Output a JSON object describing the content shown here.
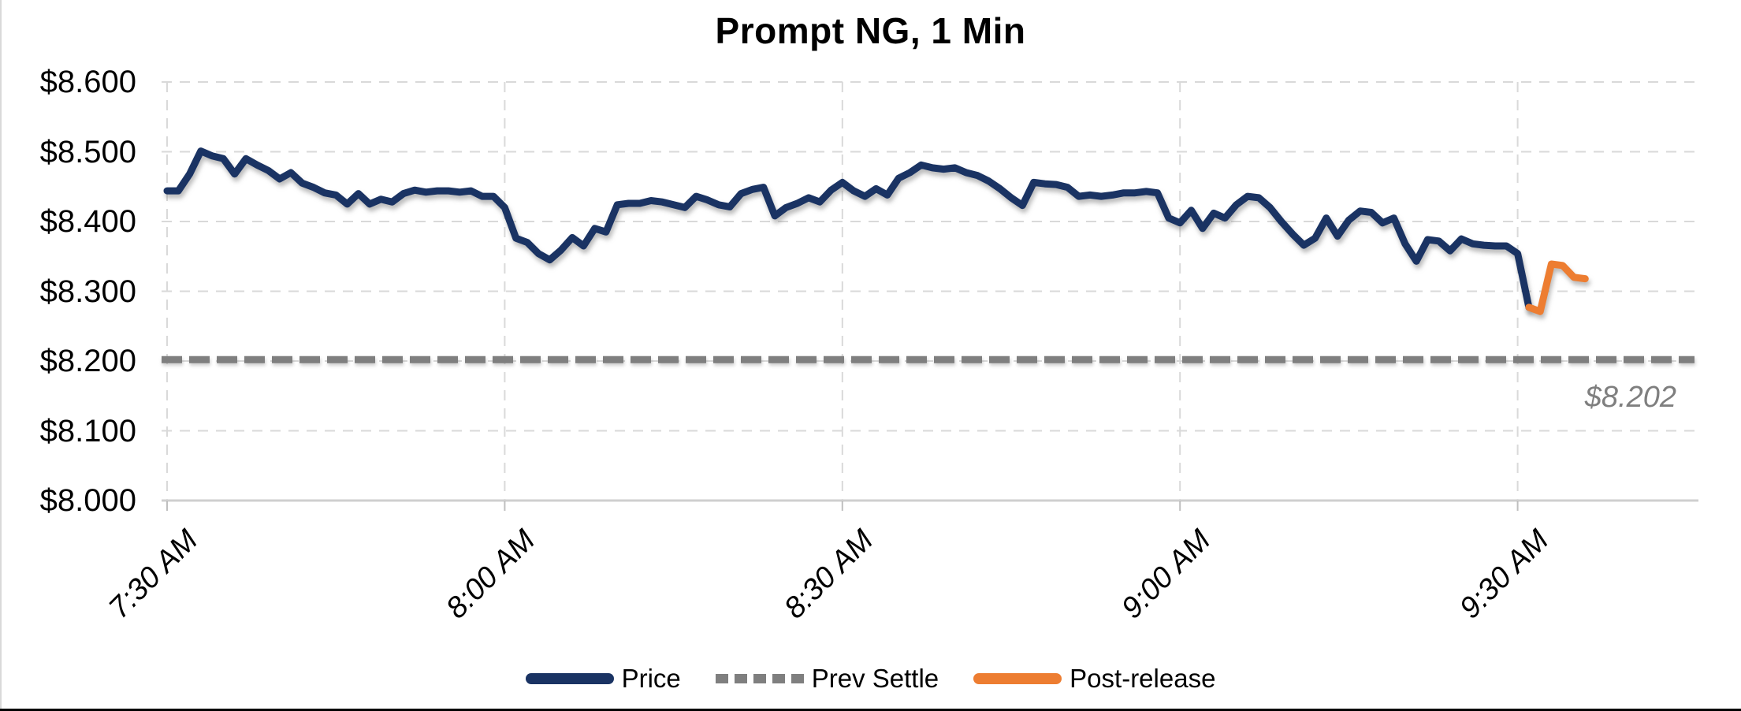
{
  "chart_data": {
    "type": "line",
    "title": "Prompt NG, 1 Min",
    "xlabel": "",
    "ylabel": "",
    "grid": true,
    "legend_position": "bottom",
    "x": {
      "unit": "minutes since 7:30 AM",
      "minutes_per_point": 1,
      "tick_minutes": [
        0,
        30,
        60,
        90,
        120
      ],
      "tick_labels": [
        "7:30 AM",
        "8:00 AM",
        "8:30 AM",
        "9:00 AM",
        "9:30 AM"
      ]
    },
    "y": {
      "min": 8.0,
      "max": 8.6,
      "step": 0.1,
      "tick_labels": [
        "$8.000",
        "$8.100",
        "$8.200",
        "$8.300",
        "$8.400",
        "$8.500",
        "$8.600"
      ]
    },
    "annotation": {
      "text": "$8.202",
      "color": "#7f7f7f",
      "attached_to": "Prev Settle"
    },
    "series": [
      {
        "name": "Price",
        "type": "line",
        "color": "#1a3363",
        "dash": false,
        "start_minute": 0,
        "values": [
          8.444,
          8.444,
          8.468,
          8.501,
          8.494,
          8.49,
          8.468,
          8.49,
          8.481,
          8.473,
          8.461,
          8.47,
          8.455,
          8.449,
          8.441,
          8.438,
          8.425,
          8.44,
          8.425,
          8.432,
          8.428,
          8.44,
          8.445,
          8.442,
          8.444,
          8.444,
          8.442,
          8.444,
          8.436,
          8.436,
          8.42,
          8.376,
          8.37,
          8.354,
          8.345,
          8.359,
          8.377,
          8.365,
          8.39,
          8.385,
          8.424,
          8.426,
          8.426,
          8.43,
          8.428,
          8.424,
          8.42,
          8.436,
          8.431,
          8.424,
          8.421,
          8.44,
          8.446,
          8.449,
          8.408,
          8.42,
          8.426,
          8.434,
          8.428,
          8.445,
          8.456,
          8.444,
          8.436,
          8.447,
          8.438,
          8.462,
          8.47,
          8.481,
          8.477,
          8.475,
          8.477,
          8.47,
          8.466,
          8.458,
          8.447,
          8.434,
          8.423,
          8.456,
          8.454,
          8.453,
          8.449,
          8.436,
          8.438,
          8.436,
          8.438,
          8.441,
          8.441,
          8.443,
          8.441,
          8.405,
          8.398,
          8.416,
          8.39,
          8.412,
          8.405,
          8.424,
          8.436,
          8.434,
          8.42,
          8.4,
          8.382,
          8.366,
          8.376,
          8.405,
          8.379,
          8.402,
          8.415,
          8.413,
          8.398,
          8.405,
          8.368,
          8.343,
          8.374,
          8.372,
          8.358,
          8.375,
          8.368,
          8.366,
          8.365,
          8.365,
          8.354,
          8.277
        ]
      },
      {
        "name": "Prev Settle",
        "type": "hline",
        "color": "#7f7f7f",
        "dash": true,
        "value": 8.202
      },
      {
        "name": "Post-release",
        "type": "line",
        "color": "#ed7d31",
        "dash": false,
        "start_minute": 121,
        "values": [
          8.277,
          8.271,
          8.339,
          8.337,
          8.32,
          8.318
        ]
      }
    ]
  }
}
